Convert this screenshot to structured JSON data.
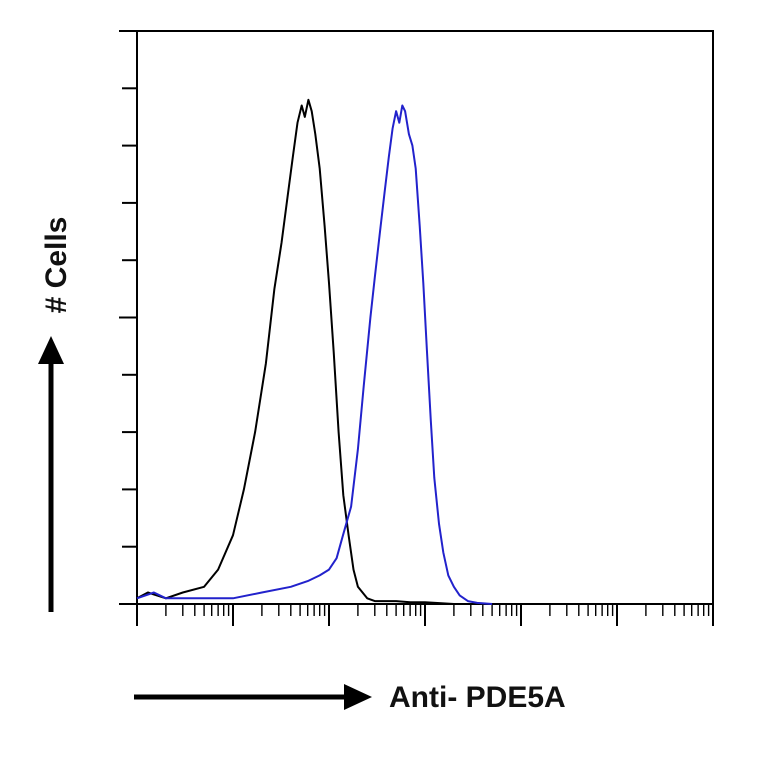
{
  "chart_data": {
    "type": "line",
    "chart_kind": "flow cytometry histogram overlay",
    "xlabel": "Anti- PDE5A",
    "ylabel": "# Cells",
    "x_scale": "log",
    "xlim": [
      0.1,
      100000
    ],
    "ylim": [
      0,
      100
    ],
    "grid": false,
    "legend": "none",
    "series": [
      {
        "color": "#000000",
        "points": [
          [
            0.1,
            1
          ],
          [
            0.13,
            2
          ],
          [
            0.2,
            1
          ],
          [
            0.3,
            2
          ],
          [
            0.5,
            3
          ],
          [
            0.7,
            6
          ],
          [
            1,
            12
          ],
          [
            1.3,
            20
          ],
          [
            1.7,
            30
          ],
          [
            2.2,
            42
          ],
          [
            2.7,
            55
          ],
          [
            3.2,
            63
          ],
          [
            3.7,
            71
          ],
          [
            4.2,
            78
          ],
          [
            4.7,
            84
          ],
          [
            5.2,
            87
          ],
          [
            5.6,
            85
          ],
          [
            6.1,
            88
          ],
          [
            6.6,
            86
          ],
          [
            7.2,
            82
          ],
          [
            8,
            76
          ],
          [
            9,
            66
          ],
          [
            10,
            56
          ],
          [
            11.2,
            44
          ],
          [
            12.6,
            30
          ],
          [
            14.1,
            19
          ],
          [
            16,
            12
          ],
          [
            18,
            6
          ],
          [
            20,
            3
          ],
          [
            25,
            1
          ],
          [
            30,
            0.5
          ],
          [
            50,
            0.5
          ],
          [
            70,
            0.3
          ],
          [
            100,
            0.3
          ],
          [
            200,
            0
          ]
        ]
      },
      {
        "color": "#2222cc",
        "points": [
          [
            0.1,
            1
          ],
          [
            0.15,
            2
          ],
          [
            0.2,
            1
          ],
          [
            0.5,
            1
          ],
          [
            1,
            1
          ],
          [
            2,
            2
          ],
          [
            4,
            3
          ],
          [
            6,
            4
          ],
          [
            8,
            5
          ],
          [
            10,
            6
          ],
          [
            12,
            8
          ],
          [
            14,
            12
          ],
          [
            17,
            17
          ],
          [
            20,
            27
          ],
          [
            23,
            38
          ],
          [
            27,
            50
          ],
          [
            30,
            57
          ],
          [
            34,
            65
          ],
          [
            38,
            72
          ],
          [
            42,
            78
          ],
          [
            46,
            83
          ],
          [
            50,
            86
          ],
          [
            54,
            84
          ],
          [
            58,
            87
          ],
          [
            62,
            86
          ],
          [
            68,
            82
          ],
          [
            74,
            80
          ],
          [
            80,
            76
          ],
          [
            88,
            66
          ],
          [
            96,
            56
          ],
          [
            105,
            44
          ],
          [
            115,
            32
          ],
          [
            125,
            22
          ],
          [
            140,
            14
          ],
          [
            155,
            9
          ],
          [
            175,
            5
          ],
          [
            200,
            3
          ],
          [
            230,
            1.5
          ],
          [
            280,
            0.5
          ],
          [
            350,
            0.2
          ],
          [
            500,
            0
          ]
        ]
      }
    ],
    "colors": {
      "control": "#000000",
      "sample": "#2222cc",
      "axis": "#000000"
    }
  }
}
